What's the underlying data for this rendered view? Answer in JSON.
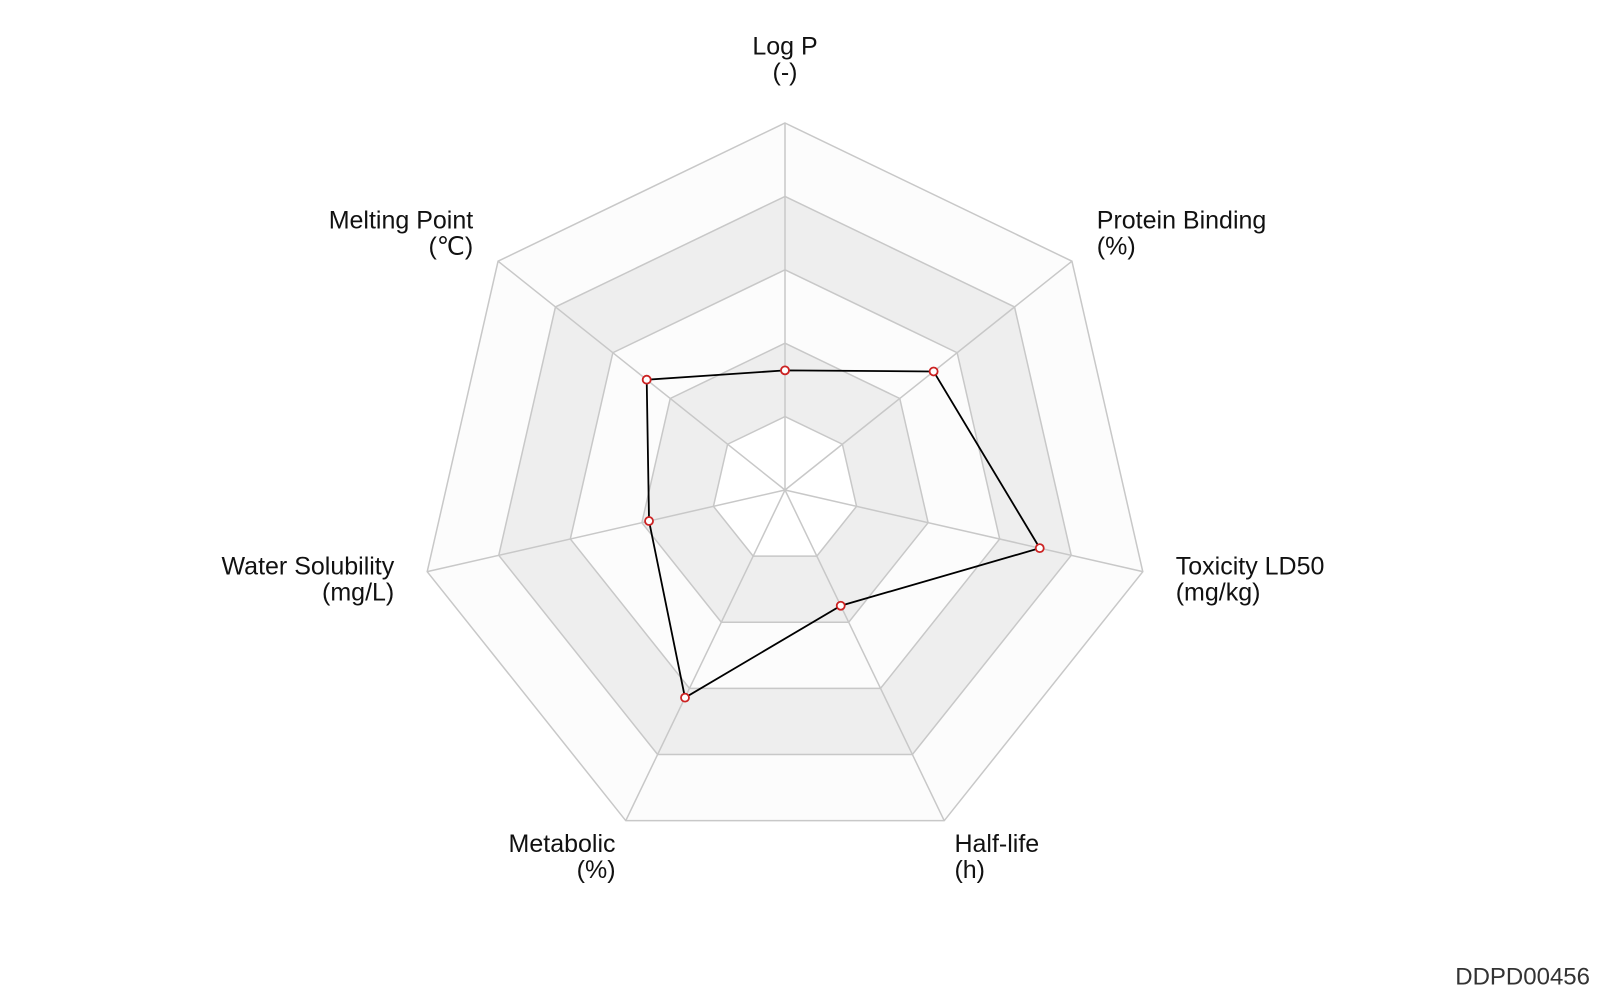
{
  "chart_data": {
    "type": "radar",
    "axes": [
      {
        "name": "Log P",
        "unit": "(-)"
      },
      {
        "name": "Protein Binding",
        "unit": "(%)"
      },
      {
        "name": "Toxicity LD50",
        "unit": "(mg/kg)"
      },
      {
        "name": "Half-life",
        "unit": "(h)"
      },
      {
        "name": "Metabolic",
        "unit": "(%)"
      },
      {
        "name": "Water Solubility",
        "unit": "(mg/L)"
      },
      {
        "name": "Melting Point",
        "unit": "(℃)"
      }
    ],
    "values": [
      1.63,
      2.59,
      3.56,
      1.75,
      3.14,
      1.9,
      2.41
    ],
    "rlim": [
      0,
      5
    ],
    "rticks": [
      1,
      2,
      3,
      4,
      5
    ],
    "line_color": "#000000",
    "marker_color": "#cc2222",
    "band_colors": [
      "#ffffff",
      "#eeeeee",
      "#fcfcfc",
      "#eeeeee",
      "#fcfcfc"
    ],
    "grid_color": "#c8c8c8"
  },
  "footer": {
    "id": "DDPD00456"
  }
}
